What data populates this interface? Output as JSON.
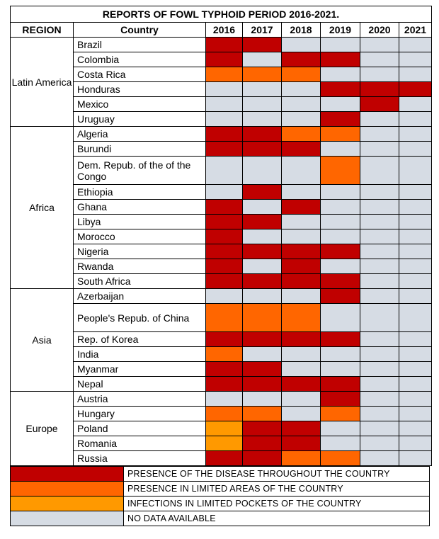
{
  "title": "REPORTS OF FOWL TYPHOID PERIOD 2016-2021.",
  "headers": {
    "region": "REGION",
    "country": "Country",
    "years": [
      "2016",
      "2017",
      "2018",
      "2019",
      "2020",
      "2021"
    ]
  },
  "colors": {
    "0": "#d6dce4",
    "1": "#c00000",
    "2": "#ff6600",
    "3": "#ff9900"
  },
  "regions": [
    {
      "name": "Latin America",
      "countries": [
        {
          "name": "Brazil",
          "status": [
            1,
            1,
            0,
            0,
            0,
            0
          ]
        },
        {
          "name": "Colombia",
          "status": [
            1,
            0,
            1,
            1,
            0,
            0
          ]
        },
        {
          "name": "Costa Rica",
          "status": [
            2,
            2,
            2,
            0,
            0,
            0
          ]
        },
        {
          "name": "Honduras",
          "status": [
            0,
            0,
            0,
            1,
            1,
            1
          ]
        },
        {
          "name": "Mexico",
          "status": [
            0,
            0,
            0,
            0,
            1,
            0
          ]
        },
        {
          "name": "Uruguay",
          "status": [
            0,
            0,
            0,
            1,
            0,
            0
          ]
        }
      ]
    },
    {
      "name": "Africa",
      "countries": [
        {
          "name": "Algeria",
          "status": [
            1,
            1,
            2,
            2,
            0,
            0
          ]
        },
        {
          "name": "Burundi",
          "status": [
            1,
            1,
            1,
            0,
            0,
            0
          ]
        },
        {
          "name": "Dem. Repub. of the of the Congo",
          "status": [
            0,
            0,
            0,
            2,
            0,
            0
          ],
          "tall": true
        },
        {
          "name": "Ethiopia",
          "status": [
            0,
            1,
            0,
            0,
            0,
            0
          ]
        },
        {
          "name": "Ghana",
          "status": [
            1,
            0,
            1,
            0,
            0,
            0
          ]
        },
        {
          "name": "Libya",
          "status": [
            1,
            1,
            0,
            0,
            0,
            0
          ]
        },
        {
          "name": "Morocco",
          "status": [
            1,
            0,
            0,
            0,
            0,
            0
          ]
        },
        {
          "name": "Nigeria",
          "status": [
            1,
            1,
            1,
            1,
            0,
            0
          ]
        },
        {
          "name": "Rwanda",
          "status": [
            1,
            0,
            1,
            0,
            0,
            0
          ]
        },
        {
          "name": "South Africa",
          "status": [
            1,
            1,
            1,
            1,
            0,
            0
          ]
        }
      ]
    },
    {
      "name": "Asia",
      "countries": [
        {
          "name": "Azerbaijan",
          "status": [
            0,
            0,
            0,
            1,
            0,
            0
          ]
        },
        {
          "name": "People's Repub. of China",
          "status": [
            2,
            2,
            2,
            0,
            0,
            0
          ],
          "tall": true
        },
        {
          "name": "Rep. of Korea",
          "status": [
            1,
            1,
            1,
            1,
            0,
            0
          ]
        },
        {
          "name": "India",
          "status": [
            2,
            0,
            0,
            0,
            0,
            0
          ]
        },
        {
          "name": "Myanmar",
          "status": [
            1,
            1,
            0,
            0,
            0,
            0
          ]
        },
        {
          "name": "Nepal",
          "status": [
            1,
            1,
            1,
            1,
            0,
            0
          ]
        }
      ]
    },
    {
      "name": "Europe",
      "countries": [
        {
          "name": "Austria",
          "status": [
            0,
            0,
            0,
            1,
            0,
            0
          ]
        },
        {
          "name": "Hungary",
          "status": [
            2,
            2,
            0,
            2,
            0,
            0
          ]
        },
        {
          "name": "Poland",
          "status": [
            3,
            1,
            1,
            0,
            0,
            0
          ]
        },
        {
          "name": "Romania",
          "status": [
            3,
            1,
            1,
            0,
            0,
            0
          ]
        },
        {
          "name": "Russia",
          "status": [
            1,
            1,
            2,
            2,
            0,
            0
          ]
        }
      ]
    }
  ],
  "legend": [
    {
      "color": "#c00000",
      "label": "PRESENCE OF THE DISEASE THROUGHOUT THE COUNTRY"
    },
    {
      "color": "#ff6600",
      "label": "PRESENCE IN LIMITED AREAS OF THE COUNTRY"
    },
    {
      "color": "#ff9900",
      "label": "INFECTIONS IN LIMITED POCKETS OF THE COUNTRY"
    },
    {
      "color": "#d6dce4",
      "label": "NO DATA AVAILABLE"
    }
  ]
}
